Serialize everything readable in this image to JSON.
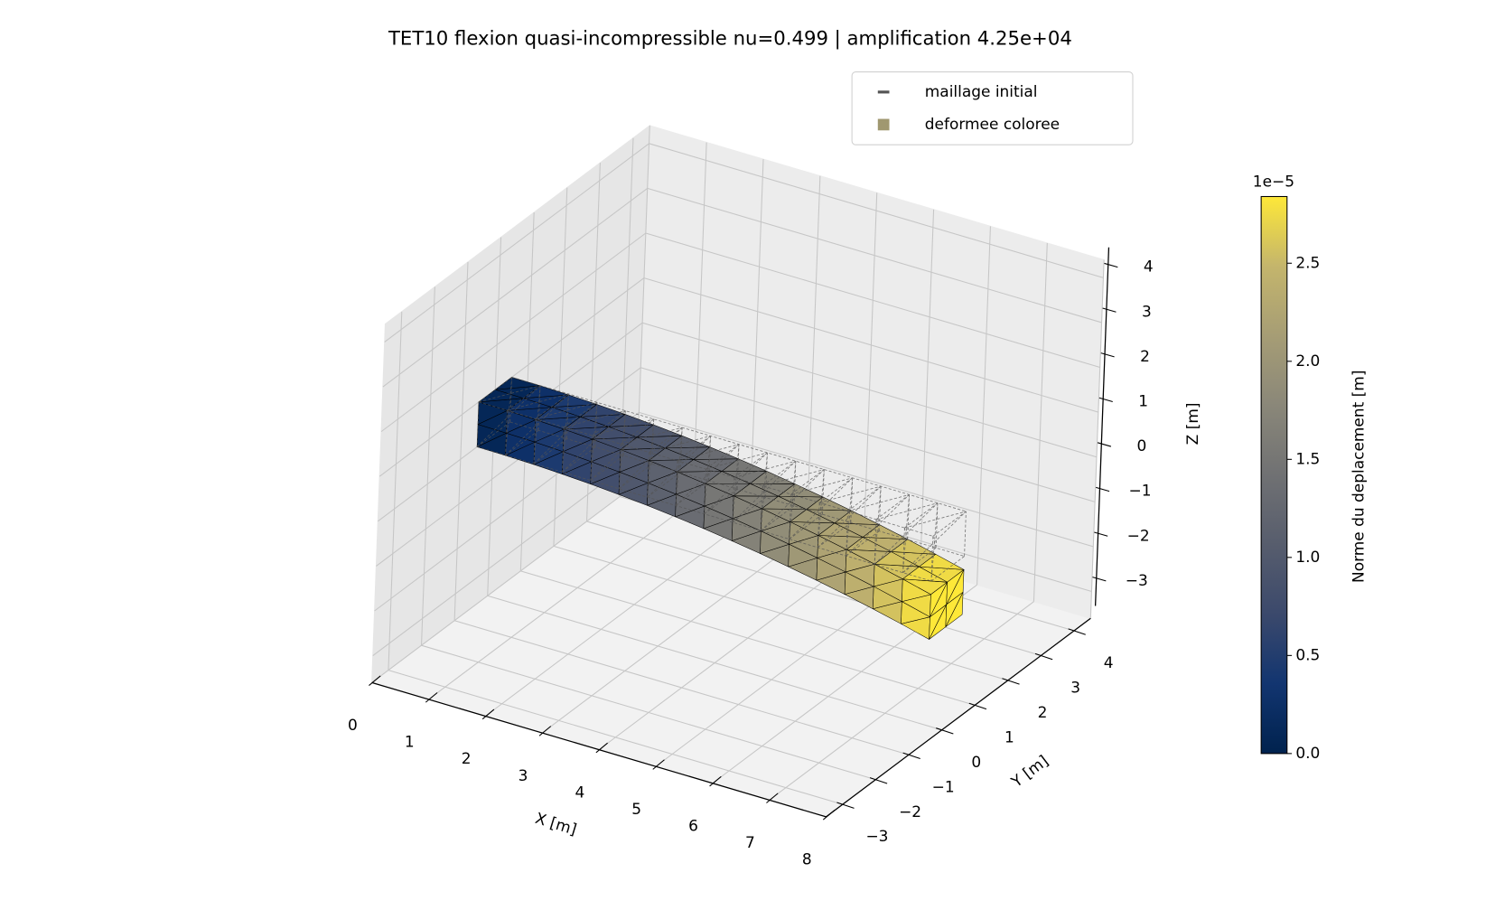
{
  "chart_data": {
    "type": "mesh3d",
    "title": "TET10 flexion quasi-incompressible nu=0.499 | amplification 4.25e+04",
    "legend": {
      "position": "upper right",
      "entries": [
        {
          "name": "maillage initial",
          "color": "#555555",
          "marker": "dash"
        },
        {
          "name": "deformee coloree",
          "color": "#a09870",
          "marker": "square"
        }
      ]
    },
    "xlabel": "X [m]",
    "ylabel": "Y [m]",
    "zlabel": "Z [m]",
    "xlim": [
      0,
      8
    ],
    "xticks": [
      0,
      1,
      2,
      3,
      4,
      5,
      6,
      7,
      8
    ],
    "ylim": [
      -3.5,
      4.5
    ],
    "yticks": [
      {
        "value": -3,
        "label": "−3"
      },
      {
        "value": -2,
        "label": "−2"
      },
      {
        "value": -1,
        "label": "−1"
      },
      0,
      1,
      2,
      3,
      4
    ],
    "zlim": [
      -3.6,
      4.4
    ],
    "zticks": [
      {
        "value": -3,
        "label": "−3"
      },
      {
        "value": -2,
        "label": "−2"
      },
      {
        "value": -1,
        "label": "−1"
      },
      0,
      1,
      2,
      3,
      4
    ],
    "grid": true,
    "colorbar": {
      "cmap": "cividis",
      "colors": [
        "#00224e",
        "#123570",
        "#3b496c",
        "#575d6d",
        "#707173",
        "#8a8779",
        "#a69d75",
        "#c4b56c",
        "#fee838"
      ],
      "clim": [
        0,
        2.84
      ],
      "ticks": [
        {
          "value": 0,
          "label": "0.0"
        },
        0.5,
        {
          "value": 1,
          "label": "1.0"
        },
        1.5,
        {
          "value": 2,
          "label": "2.0"
        },
        2.5
      ],
      "offset_text": "1e−5",
      "label": "Norme du deplacement [m]"
    }
  }
}
